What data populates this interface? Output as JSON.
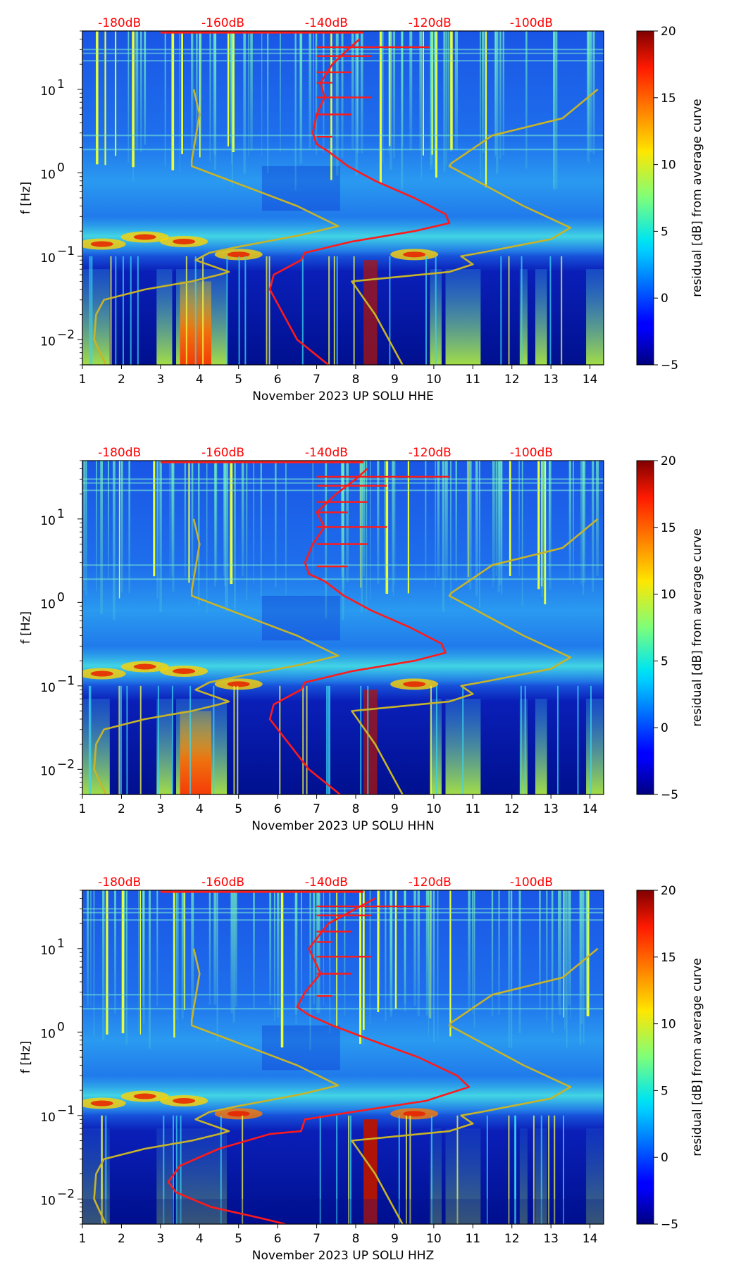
{
  "chart_data": [
    {
      "type": "heatmap",
      "title": "",
      "xlabel": "November 2023 UP SOLU  HHE",
      "ylabel": "f [Hz]",
      "colorbar_label": "residual [dB] from average curve",
      "colorbar_ticks": [
        20,
        15,
        10,
        5,
        0,
        -5
      ],
      "colorbar_ticks_text": [
        "20",
        "15",
        "10",
        "5",
        "0",
        "−5"
      ],
      "colorbar_range": [
        -5,
        20
      ],
      "x_ticks": [
        1,
        2,
        3,
        4,
        5,
        6,
        7,
        8,
        9,
        10,
        11,
        12,
        13,
        14
      ],
      "x_tick_labels": [
        "1",
        "2",
        "3",
        "4",
        "5",
        "6",
        "7",
        "8",
        "9",
        "10",
        "11",
        "12",
        "13",
        "14"
      ],
      "xlim": [
        1,
        14.35
      ],
      "ylim": [
        0.005,
        50
      ],
      "y_scale": "log",
      "y_ticks": [
        10,
        1,
        0.1,
        0.01
      ],
      "y_tick_base": [
        "10",
        "10",
        "10",
        "10"
      ],
      "y_tick_exp": [
        "1",
        "0",
        "−1",
        "−2"
      ],
      "db_scale_labels": [
        "-180dB",
        "-160dB",
        "-140dB",
        "-120dB",
        "-100dB"
      ],
      "db_scale_values": [
        -180,
        -160,
        -140,
        -120,
        -100
      ],
      "series": [
        {
          "name": "average PSD (red)",
          "color": "#ff1a1a",
          "x": [
            7.3,
            6.5,
            5.8,
            5.9,
            6.6,
            6.7,
            7.9,
            9.5,
            10.4,
            10.3,
            9.5,
            8.5,
            7.8,
            7.3,
            7.0,
            6.9,
            7.0,
            7.2,
            7.1,
            7.4,
            7.8,
            8.1
          ],
          "y": [
            0.005,
            0.01,
            0.04,
            0.06,
            0.09,
            0.11,
            0.15,
            0.2,
            0.25,
            0.32,
            0.5,
            0.8,
            1.2,
            1.8,
            2.2,
            3,
            5,
            8,
            12,
            20,
            30,
            40
          ]
        },
        {
          "name": "NLNM (yellow)",
          "color": "#c8b428",
          "x": [
            1.6,
            1.45,
            1.3,
            1.35,
            1.55,
            2.6,
            3.8,
            4.5,
            4.75,
            3.9,
            4.25,
            5.0,
            6.6,
            7.55,
            6.5,
            3.8,
            3.8,
            4.0,
            3.85
          ],
          "y": [
            0.005,
            0.007,
            0.01,
            0.02,
            0.03,
            0.04,
            0.05,
            0.06,
            0.065,
            0.09,
            0.11,
            0.13,
            0.18,
            0.23,
            0.4,
            1.2,
            1.4,
            5,
            10
          ]
        },
        {
          "name": "NHNM (yellow)",
          "color": "#c8b428",
          "x": [
            9.2,
            8.5,
            7.9,
            10.4,
            11.0,
            10.7,
            11.2,
            13.0,
            13.5,
            12.3,
            10.4,
            10.45,
            11.5,
            13.3,
            14.2
          ],
          "y": [
            0.005,
            0.02,
            0.05,
            0.065,
            0.08,
            0.1,
            0.11,
            0.16,
            0.22,
            0.4,
            1.2,
            1.3,
            2.8,
            4.5,
            10
          ]
        }
      ],
      "db_markers_red_max_x": 9.9
    },
    {
      "type": "heatmap",
      "title": "",
      "xlabel": "November 2023 UP SOLU  HHN",
      "ylabel": "f [Hz]",
      "colorbar_label": "residual [dB] from average curve",
      "colorbar_ticks": [
        20,
        15,
        10,
        5,
        0,
        -5
      ],
      "colorbar_ticks_text": [
        "20",
        "15",
        "10",
        "5",
        "0",
        "−5"
      ],
      "colorbar_range": [
        -5,
        20
      ],
      "x_ticks": [
        1,
        2,
        3,
        4,
        5,
        6,
        7,
        8,
        9,
        10,
        11,
        12,
        13,
        14
      ],
      "x_tick_labels": [
        "1",
        "2",
        "3",
        "4",
        "5",
        "6",
        "7",
        "8",
        "9",
        "10",
        "11",
        "12",
        "13",
        "14"
      ],
      "xlim": [
        1,
        14.35
      ],
      "ylim": [
        0.005,
        50
      ],
      "y_scale": "log",
      "y_ticks": [
        10,
        1,
        0.1,
        0.01
      ],
      "y_tick_base": [
        "10",
        "10",
        "10",
        "10"
      ],
      "y_tick_exp": [
        "1",
        "0",
        "−1",
        "−2"
      ],
      "db_scale_labels": [
        "-180dB",
        "-160dB",
        "-140dB",
        "-120dB",
        "-100dB"
      ],
      "db_scale_values": [
        -180,
        -160,
        -140,
        -120,
        -100
      ],
      "series": [
        {
          "name": "average PSD (red)",
          "color": "#ff1a1a",
          "x": [
            7.6,
            6.8,
            5.8,
            5.9,
            6.6,
            6.7,
            7.9,
            9.5,
            10.3,
            10.2,
            9.4,
            8.4,
            7.7,
            7.2,
            6.8,
            6.7,
            6.9,
            7.2,
            7.0,
            7.5,
            8.0,
            8.3
          ],
          "y": [
            0.005,
            0.01,
            0.04,
            0.06,
            0.09,
            0.11,
            0.15,
            0.2,
            0.25,
            0.32,
            0.5,
            0.8,
            1.2,
            1.8,
            2.2,
            3,
            5,
            8,
            12,
            20,
            30,
            40
          ]
        },
        {
          "name": "NLNM (yellow)",
          "color": "#c8b428",
          "x": [
            1.6,
            1.45,
            1.3,
            1.35,
            1.55,
            2.6,
            3.8,
            4.5,
            4.75,
            3.9,
            4.25,
            5.0,
            6.6,
            7.55,
            6.5,
            3.8,
            3.8,
            4.0,
            3.85
          ],
          "y": [
            0.005,
            0.007,
            0.01,
            0.02,
            0.03,
            0.04,
            0.05,
            0.06,
            0.065,
            0.09,
            0.11,
            0.13,
            0.18,
            0.23,
            0.4,
            1.2,
            1.4,
            5,
            10
          ]
        },
        {
          "name": "NHNM (yellow)",
          "color": "#c8b428",
          "x": [
            9.2,
            8.5,
            7.9,
            10.4,
            11.0,
            10.7,
            11.2,
            13.0,
            13.5,
            12.3,
            10.4,
            10.45,
            11.5,
            13.3,
            14.2
          ],
          "y": [
            0.005,
            0.02,
            0.05,
            0.065,
            0.08,
            0.1,
            0.11,
            0.16,
            0.22,
            0.4,
            1.2,
            1.3,
            2.8,
            4.5,
            10
          ]
        }
      ],
      "db_markers_red_max_x": 10.4
    },
    {
      "type": "heatmap",
      "title": "",
      "xlabel": "November 2023 UP SOLU  HHZ",
      "ylabel": "f [Hz]",
      "colorbar_label": "residual [dB] from average curve",
      "colorbar_ticks": [
        20,
        15,
        10,
        5,
        0,
        -5
      ],
      "colorbar_ticks_text": [
        "20",
        "15",
        "10",
        "5",
        "0",
        "−5"
      ],
      "colorbar_range": [
        -5,
        20
      ],
      "x_ticks": [
        1,
        2,
        3,
        4,
        5,
        6,
        7,
        8,
        9,
        10,
        11,
        12,
        13,
        14
      ],
      "x_tick_labels": [
        "1",
        "2",
        "3",
        "4",
        "5",
        "6",
        "7",
        "8",
        "9",
        "10",
        "11",
        "12",
        "13",
        "14"
      ],
      "xlim": [
        1,
        14.35
      ],
      "ylim": [
        0.005,
        50
      ],
      "y_scale": "log",
      "y_ticks": [
        10,
        1,
        0.1,
        0.01
      ],
      "y_tick_base": [
        "10",
        "10",
        "10",
        "10"
      ],
      "y_tick_exp": [
        "1",
        "0",
        "−1",
        "−2"
      ],
      "db_scale_labels": [
        "-180dB",
        "-160dB",
        "-140dB",
        "-120dB",
        "-100dB"
      ],
      "db_scale_values": [
        -180,
        -160,
        -140,
        -120,
        -100
      ],
      "series": [
        {
          "name": "average PSD (red)",
          "color": "#ff1a1a",
          "x": [
            6.2,
            5.5,
            4.3,
            3.8,
            3.4,
            3.2,
            3.5,
            4.5,
            5.8,
            6.6,
            6.7,
            7.9,
            9.8,
            10.9,
            10.6,
            9.6,
            8.4,
            7.4,
            6.8,
            6.5,
            6.7,
            7.1,
            6.8,
            7.3,
            8.0,
            8.5
          ],
          "y": [
            0.005,
            0.006,
            0.008,
            0.01,
            0.012,
            0.016,
            0.025,
            0.04,
            0.06,
            0.065,
            0.09,
            0.11,
            0.15,
            0.22,
            0.3,
            0.5,
            0.8,
            1.2,
            1.6,
            2,
            3,
            5,
            10,
            20,
            30,
            40
          ]
        },
        {
          "name": "NLNM (yellow)",
          "color": "#c8b428",
          "x": [
            1.6,
            1.45,
            1.3,
            1.35,
            1.55,
            2.6,
            3.8,
            4.5,
            4.75,
            3.9,
            4.25,
            5.0,
            6.6,
            7.55,
            6.5,
            3.8,
            3.8,
            4.0,
            3.85
          ],
          "y": [
            0.005,
            0.007,
            0.01,
            0.02,
            0.03,
            0.04,
            0.05,
            0.06,
            0.065,
            0.09,
            0.11,
            0.13,
            0.18,
            0.23,
            0.4,
            1.2,
            1.4,
            5,
            10
          ]
        },
        {
          "name": "NHNM (yellow)",
          "color": "#c8b428",
          "x": [
            9.2,
            8.5,
            7.9,
            10.4,
            11.0,
            10.7,
            11.2,
            13.0,
            13.5,
            12.3,
            10.4,
            10.45,
            11.5,
            13.3,
            14.2
          ],
          "y": [
            0.005,
            0.02,
            0.05,
            0.065,
            0.08,
            0.1,
            0.11,
            0.16,
            0.22,
            0.4,
            1.2,
            1.3,
            2.8,
            4.5,
            10
          ]
        }
      ],
      "db_markers_red_max_x": 9.9
    }
  ]
}
